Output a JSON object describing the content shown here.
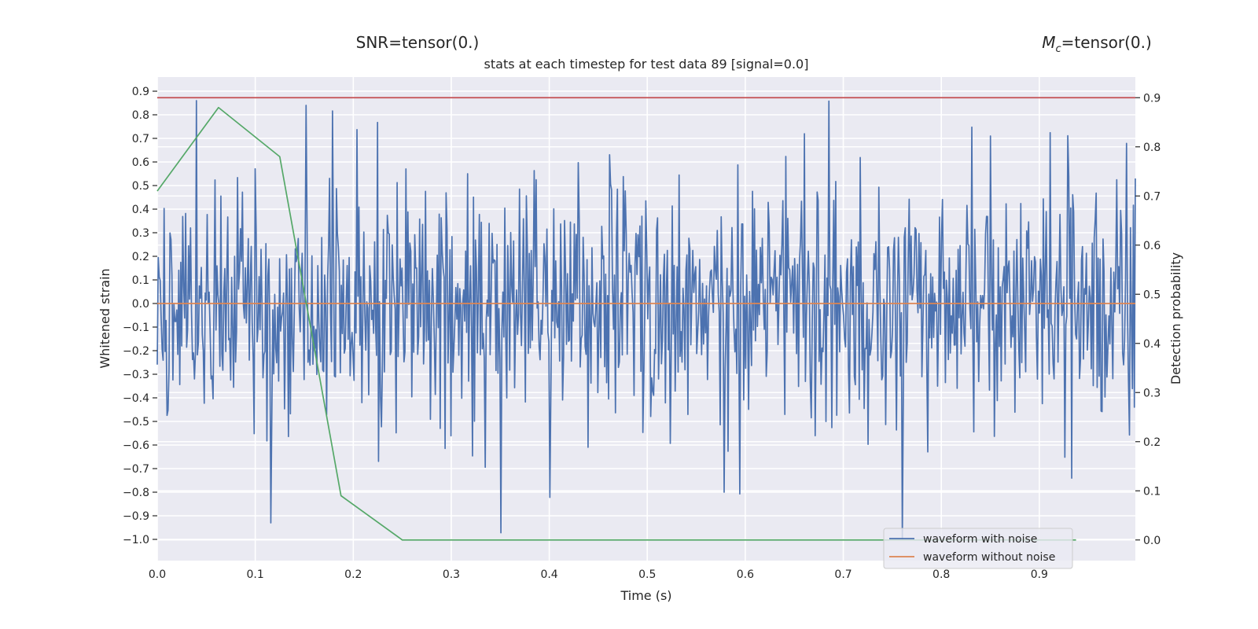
{
  "suptitle_left": "SNR=tensor(0.)",
  "suptitle_right_main": "M",
  "suptitle_right_sub": "c",
  "suptitle_right_rest": "=tensor(0.)",
  "chart_data": {
    "type": "line",
    "title": "stats at each timestep for test data 89 [signal=0.0]",
    "xlabel": "Time (s)",
    "ylabel": "Whitened strain",
    "ylabel_right": "Detection probability",
    "xlim": [
      0.0,
      0.998
    ],
    "ylim": [
      -1.09,
      0.96
    ],
    "ylim_right": [
      -0.042,
      0.942
    ],
    "xticks": [
      "0.0",
      "0.1",
      "0.2",
      "0.3",
      "0.4",
      "0.5",
      "0.6",
      "0.7",
      "0.8",
      "0.9"
    ],
    "yticks": [
      "0.9",
      "0.8",
      "0.7",
      "0.6",
      "0.5",
      "0.4",
      "0.3",
      "0.2",
      "0.1",
      "0.0",
      "-0.1",
      "-0.2",
      "-0.3",
      "-0.4",
      "-0.5",
      "-0.6",
      "-0.7",
      "-0.8",
      "-0.9",
      "-1.0"
    ],
    "yticks_right": [
      "0.9",
      "0.8",
      "0.7",
      "0.6",
      "0.5",
      "0.4",
      "0.3",
      "0.2",
      "0.1",
      "0.0"
    ],
    "grid": true,
    "legend_position": "lower-right",
    "series": [
      {
        "name": "waveform with noise",
        "axis": "left",
        "color": "#4c72b0",
        "noise": {
          "n": 1000,
          "seed": 89,
          "sigma": 0.27,
          "min": -1.0,
          "max": 0.86
        },
        "extremes": [
          {
            "x": 0.04,
            "y": 0.86
          },
          {
            "x": 0.116,
            "y": -0.93
          },
          {
            "x": 0.152,
            "y": 0.84
          },
          {
            "x": 0.578,
            "y": -0.8
          },
          {
            "x": 0.76,
            "y": -1.0
          },
          {
            "x": 0.85,
            "y": 0.71
          },
          {
            "x": 0.998,
            "y": 0.53
          }
        ]
      },
      {
        "name": "waveform without noise",
        "axis": "left",
        "color": "#dd8452",
        "x": [
          0.0,
          0.998
        ],
        "y": [
          0.0,
          0.0
        ]
      },
      {
        "name": "detection probability",
        "axis": "right",
        "color": "#55a868",
        "x": [
          0.0,
          0.0625,
          0.125,
          0.1875,
          0.25,
          0.3125,
          0.375,
          0.4375,
          0.5,
          0.5625,
          0.625,
          0.6875,
          0.75,
          0.8125,
          0.875,
          0.9375
        ],
        "y": [
          0.71,
          0.88,
          0.78,
          0.09,
          0.0,
          0.0,
          0.0,
          0.0,
          0.0,
          0.0,
          0.0,
          0.0,
          0.0,
          0.0,
          0.0,
          0.0
        ]
      },
      {
        "name": "threshold",
        "axis": "right",
        "color": "#c44e52",
        "x": [
          0.0,
          0.998
        ],
        "y": [
          0.9,
          0.9
        ]
      }
    ],
    "legend": [
      "waveform with noise",
      "waveform without noise"
    ]
  }
}
